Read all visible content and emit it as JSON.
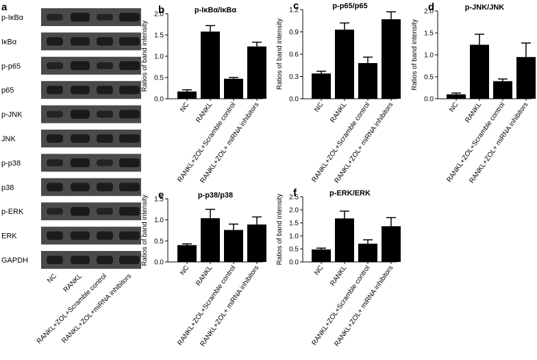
{
  "panel_a": {
    "letter": "a",
    "blot_labels": [
      "p-IκBα",
      "IκBα",
      "p-p65",
      "p65",
      "p-JNK",
      "JNK",
      "p-p38",
      "p38",
      "p-ERK",
      "ERK",
      "GAPDH"
    ],
    "lane_labels": [
      "NC",
      "RANKL",
      "RANKL+ZOL+Scramble control",
      "RANKL+ZOL+miRNA inhibitors"
    ],
    "band_color": "#1a1a1a",
    "membrane_color": "#4a4a4a"
  },
  "chart_data": [
    {
      "letter": "b",
      "type": "bar",
      "title": "p-IκBα/IκBα",
      "xlabel": "",
      "ylabel": "Ratios of band intensity",
      "categories": [
        "NC",
        "RANKL",
        "RANKL+ZOL+Scramble control",
        "RANKL+ZOL+ miRNA inhibitors"
      ],
      "values": [
        0.17,
        1.58,
        0.47,
        1.23
      ],
      "errors": [
        0.04,
        0.14,
        0.03,
        0.1
      ],
      "ylim": [
        0,
        2.0
      ],
      "yticks": [
        "0.0",
        "0.5",
        "1.0",
        "1.5",
        "2.0"
      ],
      "grid": false
    },
    {
      "letter": "c",
      "type": "bar",
      "title": "p-p65/p65",
      "xlabel": "",
      "ylabel": "Ratios of band intensity",
      "categories": [
        "NC",
        "RANKL",
        "RANKL+ZOL+Scramble control",
        "RANKL+ZOL+ miRNA inhibitors"
      ],
      "values": [
        0.34,
        0.93,
        0.48,
        1.07
      ],
      "errors": [
        0.03,
        0.09,
        0.08,
        0.1
      ],
      "ylim": [
        0,
        1.2
      ],
      "yticks": [
        "0.0",
        "0.3",
        "0.6",
        "0.9",
        "1.2"
      ],
      "grid": false
    },
    {
      "letter": "d",
      "type": "bar",
      "title": "p-JNK/JNK",
      "xlabel": "",
      "ylabel": "Ratios of band intensity",
      "categories": [
        "NC",
        "RANKL",
        "RANKL+ZOL+Scramble control",
        "RANKL+ZOL+ miRNA inhibitors"
      ],
      "values": [
        0.1,
        1.23,
        0.4,
        0.95
      ],
      "errors": [
        0.03,
        0.24,
        0.05,
        0.32
      ],
      "ylim": [
        0,
        2.0
      ],
      "yticks": [
        "0.0",
        "0.5",
        "1.0",
        "1.5",
        "2.0"
      ],
      "grid": false
    },
    {
      "letter": "e",
      "type": "bar",
      "title": "p-p38/p38",
      "xlabel": "",
      "ylabel": "Ratios of band intensity",
      "categories": [
        "NC",
        "RANKL",
        "RANKL+ZOL+Scramble control",
        "RANKL+ZOL+ miRNA inhibitors"
      ],
      "values": [
        0.4,
        1.04,
        0.76,
        0.89
      ],
      "errors": [
        0.03,
        0.21,
        0.14,
        0.18
      ],
      "ylim": [
        0,
        1.5
      ],
      "yticks": [
        "0.0",
        "0.5",
        "1.0",
        "1.5"
      ],
      "grid": false
    },
    {
      "letter": "f",
      "type": "bar",
      "title": "p-ERK/ERK",
      "xlabel": "",
      "ylabel": "Ratios of band intensity",
      "categories": [
        "NC",
        "RANKL",
        "RANKL+ZOL+Scramble control",
        "RANKL+ZOL+ miRNA inhibitors"
      ],
      "values": [
        0.48,
        1.67,
        0.7,
        1.37
      ],
      "errors": [
        0.05,
        0.28,
        0.15,
        0.33
      ],
      "ylim": [
        0,
        2.5
      ],
      "yticks": [
        "0.0",
        "0.5",
        "1.0",
        "1.5",
        "2.0",
        "2.5"
      ],
      "grid": false
    }
  ]
}
